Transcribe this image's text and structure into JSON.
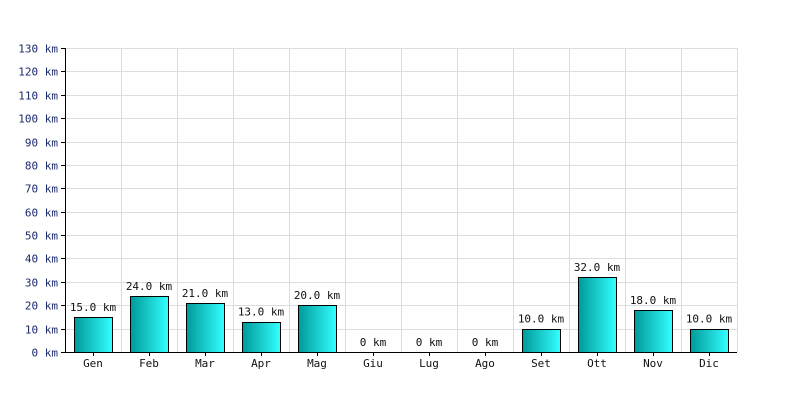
{
  "chart_data": {
    "type": "bar",
    "categories": [
      "Gen",
      "Feb",
      "Mar",
      "Apr",
      "Mag",
      "Giu",
      "Lug",
      "Ago",
      "Set",
      "Ott",
      "Nov",
      "Dic"
    ],
    "values": [
      15,
      24,
      21,
      13,
      20,
      0,
      0,
      0,
      10,
      32,
      18,
      10
    ],
    "data_labels": [
      "15.0 km",
      "24.0 km",
      "21.0 km",
      "13.0 km",
      "20.0 km",
      "0 km",
      "0 km",
      "0 km",
      "10.0 km",
      "32.0 km",
      "18.0 km",
      "10.0 km"
    ],
    "ylim": [
      0,
      130
    ],
    "yticks": [
      0,
      10,
      20,
      30,
      40,
      50,
      60,
      70,
      80,
      90,
      100,
      110,
      120,
      130
    ],
    "ytick_labels": [
      "0 km",
      "10 km",
      "20 km",
      "30 km",
      "40 km",
      "50 km",
      "60 km",
      "70 km",
      "80 km",
      "90 km",
      "100 km",
      "110 km",
      "120 km",
      "130 km"
    ],
    "grid": true,
    "colors": {
      "bar_dark": "#009a9a",
      "bar_light": "#33ffff",
      "bar_border": "#000000",
      "grid": "#dddddd",
      "axis": "#000000"
    }
  }
}
